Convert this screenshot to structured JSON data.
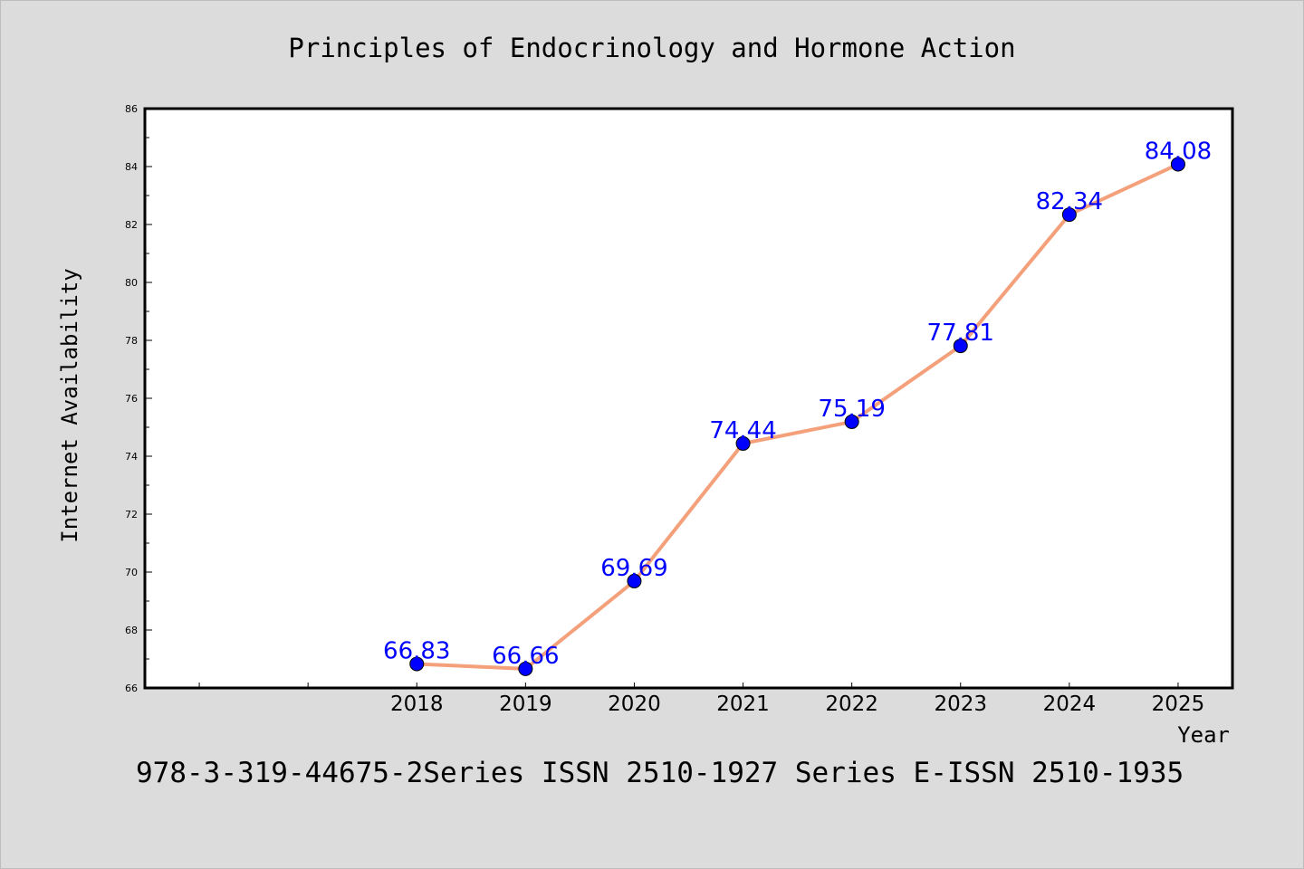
{
  "chart_data": {
    "type": "line",
    "title": "Principles of Endocrinology and Hormone Action",
    "xlabel": "Year",
    "ylabel": "Internet Availability",
    "footer": "978-3-319-44675-2Series ISSN 2510-1927 Series E-ISSN 2510-1935",
    "x_tick_labels": [
      "2018",
      "2019",
      "2020",
      "2021",
      "2022",
      "2023",
      "2024",
      "2025"
    ],
    "y_tick_labels": [
      "66",
      "68",
      "70",
      "72",
      "74",
      "76",
      "78",
      "80",
      "82",
      "84",
      "86"
    ],
    "ylim": [
      66,
      86
    ],
    "x_range": [
      2015.5,
      2025.5
    ],
    "grid": false,
    "series": [
      {
        "x": [
          2018,
          2019,
          2020,
          2021,
          2022,
          2023,
          2024,
          2025
        ],
        "values": [
          66.83,
          66.66,
          69.69,
          74.44,
          75.19,
          77.81,
          82.34,
          84.08
        ],
        "labels": [
          "66.83",
          "66.66",
          "69.69",
          "74.44",
          "75.19",
          "77.81",
          "82.34",
          "84.08"
        ],
        "line_color": "#f4a07a",
        "marker_color": "#0000ff",
        "label_color": "#0000ff"
      }
    ]
  }
}
